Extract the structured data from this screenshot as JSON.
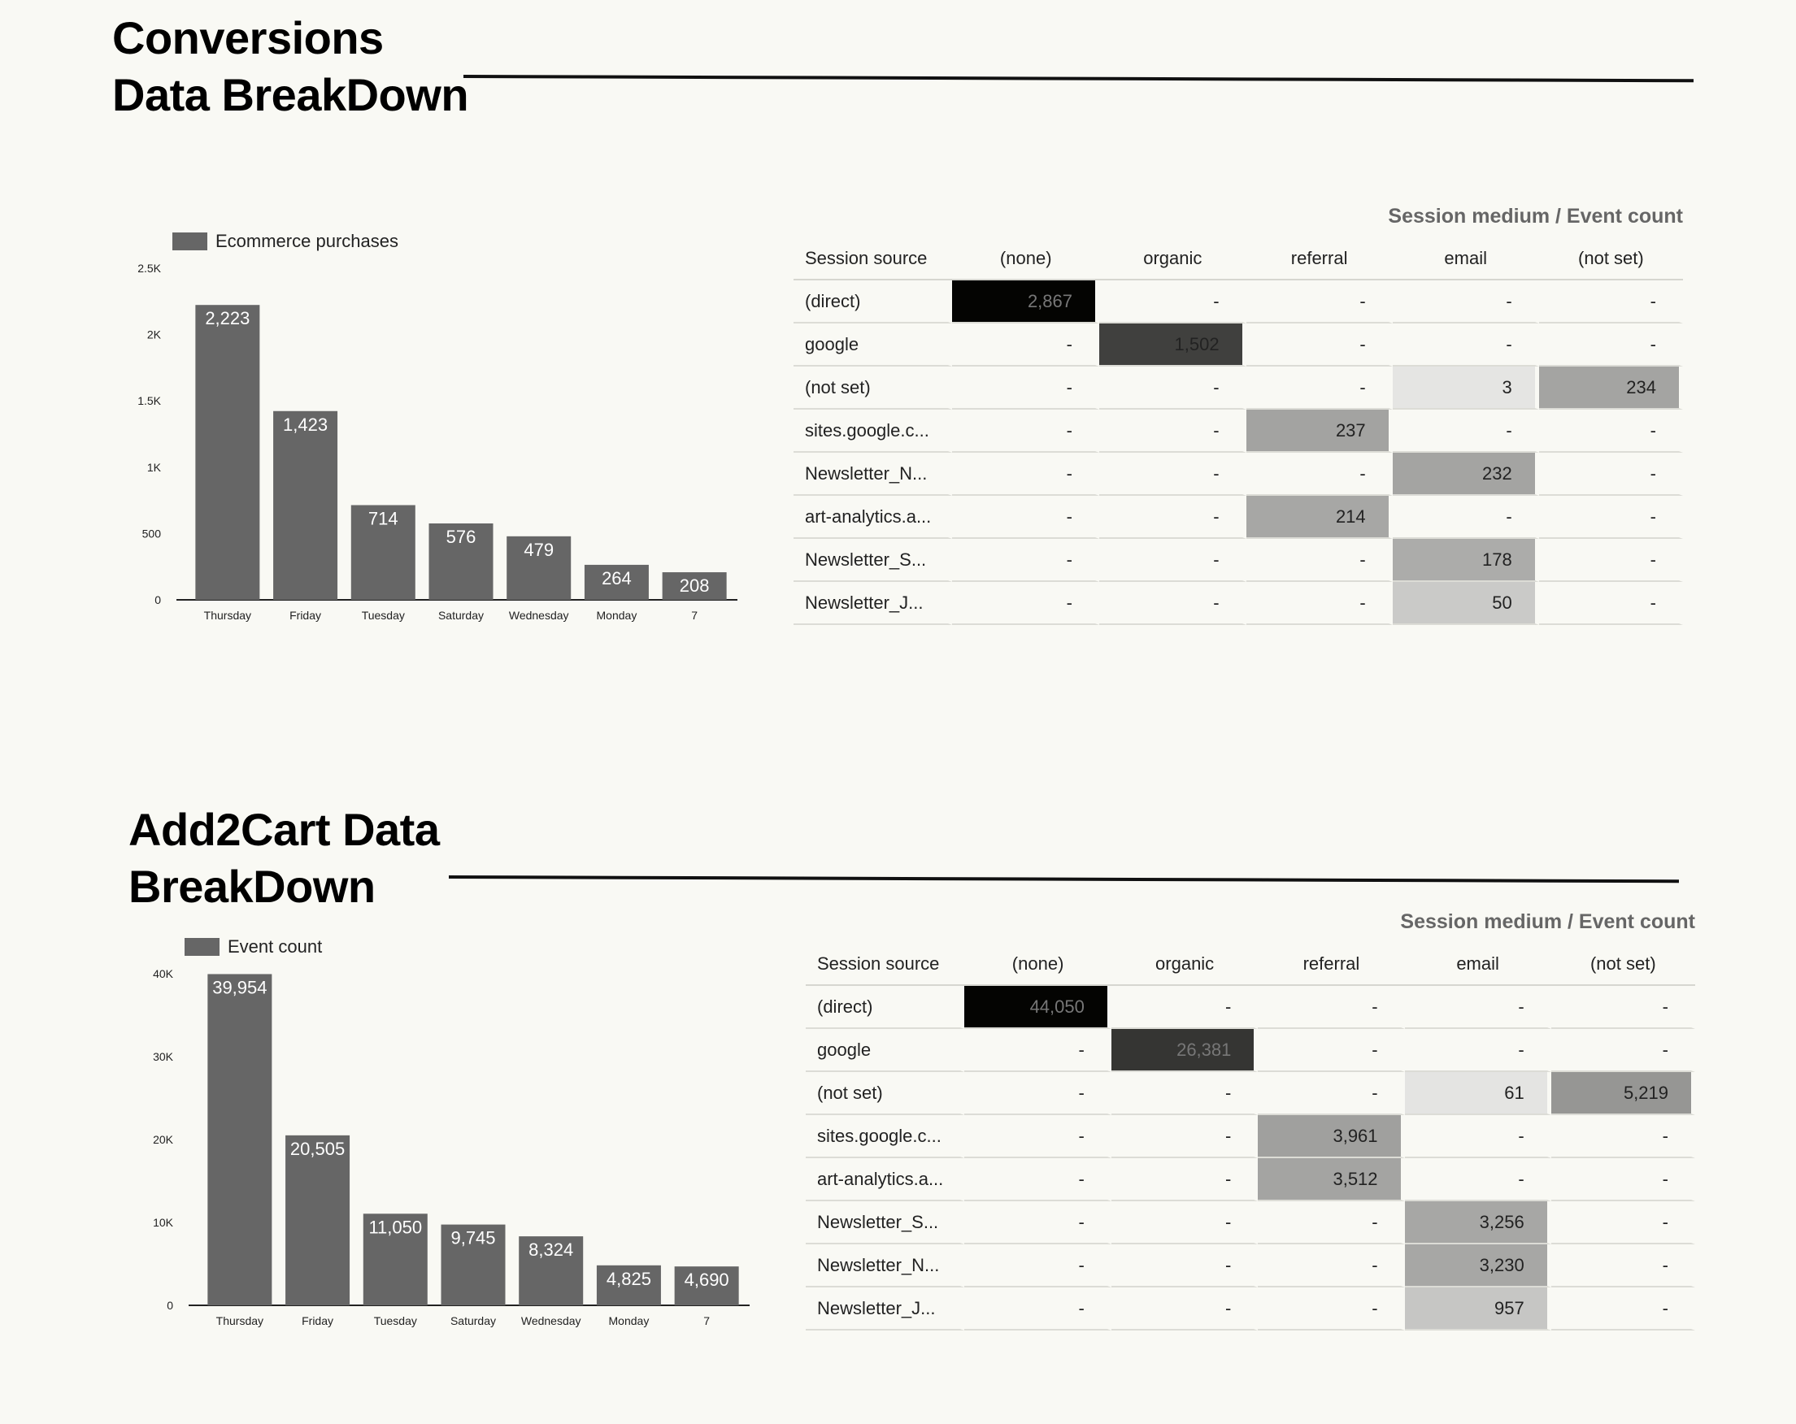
{
  "conversions": {
    "title_line1": "Conversions",
    "title_line2": "Data BreakDown",
    "legend": "Ecommerce purchases",
    "table": {
      "caption": "Session medium / Event count",
      "header": [
        "Session source",
        "(none)",
        "organic",
        "referral",
        "email",
        "(not set)"
      ],
      "rows": [
        [
          "(direct)",
          "2,867",
          "-",
          "-",
          "-",
          "-"
        ],
        [
          "google",
          "-",
          "1,502",
          "-",
          "-",
          "-"
        ],
        [
          "(not set)",
          "-",
          "-",
          "-",
          "3",
          "234"
        ],
        [
          "sites.google.c...",
          "-",
          "-",
          "237",
          "-",
          "-"
        ],
        [
          "Newsletter_N...",
          "-",
          "-",
          "-",
          "232",
          "-"
        ],
        [
          "art-analytics.a...",
          "-",
          "-",
          "214",
          "-",
          "-"
        ],
        [
          "Newsletter_S...",
          "-",
          "-",
          "-",
          "178",
          "-"
        ],
        [
          "Newsletter_J...",
          "-",
          "-",
          "-",
          "50",
          "-"
        ]
      ]
    }
  },
  "add2cart": {
    "title_line1": "Add2Cart Data",
    "title_line2": "BreakDown",
    "legend": "Event count",
    "table": {
      "caption": "Session medium / Event count",
      "header": [
        "Session source",
        "(none)",
        "organic",
        "referral",
        "email",
        "(not set)"
      ],
      "rows": [
        [
          "(direct)",
          "44,050",
          "-",
          "-",
          "-",
          "-"
        ],
        [
          "google",
          "-",
          "26,381",
          "-",
          "-",
          "-"
        ],
        [
          "(not set)",
          "-",
          "-",
          "-",
          "61",
          "5,219"
        ],
        [
          "sites.google.c...",
          "-",
          "-",
          "3,961",
          "-",
          "-"
        ],
        [
          "art-analytics.a...",
          "-",
          "-",
          "3,512",
          "-",
          "-"
        ],
        [
          "Newsletter_S...",
          "-",
          "-",
          "-",
          "3,256",
          "-"
        ],
        [
          "Newsletter_N...",
          "-",
          "-",
          "-",
          "3,230",
          "-"
        ],
        [
          "Newsletter_J...",
          "-",
          "-",
          "-",
          "957",
          "-"
        ]
      ]
    }
  },
  "chart_data": [
    {
      "type": "bar",
      "series": [
        {
          "name": "Ecommerce purchases",
          "values": [
            2223,
            1423,
            714,
            576,
            479,
            264,
            208
          ]
        }
      ],
      "categories": [
        "Thursday",
        "Friday",
        "Tuesday",
        "Saturday",
        "Wednesday",
        "Monday",
        "7"
      ],
      "data_labels": [
        "2,223",
        "1,423",
        "714",
        "576",
        "479",
        "264",
        "208"
      ],
      "yticks": [
        "0",
        "500",
        "1K",
        "1.5K",
        "2K",
        "2.5K"
      ],
      "ylim": [
        0,
        2500
      ],
      "grid": false,
      "legend": "top-left",
      "bar_color": "#666666"
    },
    {
      "type": "bar",
      "series": [
        {
          "name": "Event count",
          "values": [
            39954,
            20505,
            11050,
            9745,
            8324,
            4825,
            4690
          ]
        }
      ],
      "categories": [
        "Thursday",
        "Friday",
        "Tuesday",
        "Saturday",
        "Wednesday",
        "Monday",
        "7"
      ],
      "data_labels": [
        "39,954",
        "20,505",
        "11,050",
        "9,745",
        "8,324",
        "4,825",
        "4,690"
      ],
      "yticks": [
        "0",
        "10K",
        "20K",
        "30K",
        "40K"
      ],
      "ylim": [
        0,
        40000
      ],
      "grid": false,
      "legend": "top-left",
      "bar_color": "#666666"
    }
  ]
}
